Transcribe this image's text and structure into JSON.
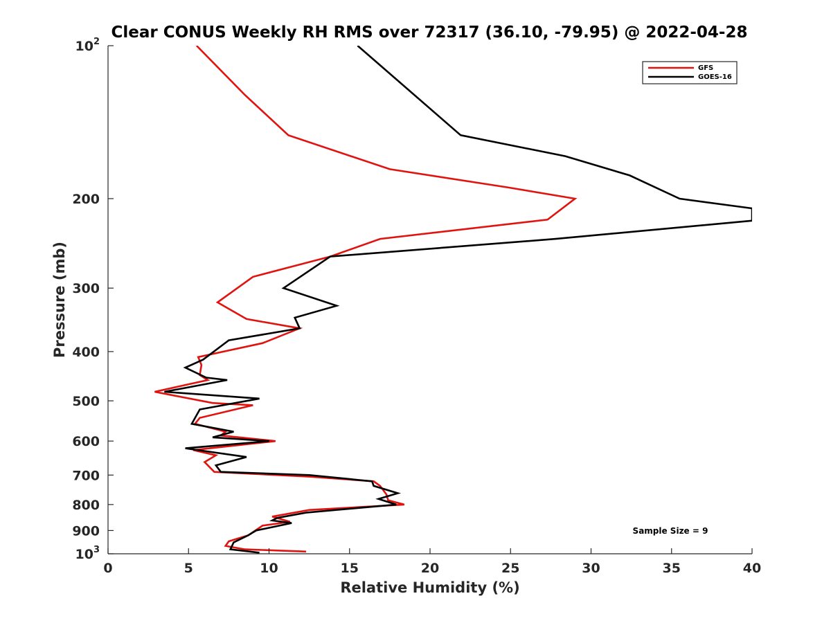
{
  "chart_data": {
    "type": "line",
    "title": "Clear CONUS Weekly RH RMS over 72317 (36.10, -79.95) @ 2022-04-28",
    "xlabel": "Relative Humidity (%)",
    "ylabel": "Pressure (mb)",
    "xlim": [
      0,
      40
    ],
    "ylim": [
      100,
      1000
    ],
    "y_scale": "log",
    "y_reversed": true,
    "x_ticks": [
      "0",
      "5",
      "10",
      "15",
      "20",
      "25",
      "30",
      "35",
      "40"
    ],
    "y_ticks": [
      {
        "value": 100,
        "base": "10",
        "exp": "2"
      },
      {
        "value": 200,
        "label": "200"
      },
      {
        "value": 300,
        "label": "300"
      },
      {
        "value": 400,
        "label": "400"
      },
      {
        "value": 500,
        "label": "500"
      },
      {
        "value": 600,
        "label": "600"
      },
      {
        "value": 700,
        "label": "700"
      },
      {
        "value": 800,
        "label": "800"
      },
      {
        "value": 900,
        "label": "900"
      },
      {
        "value": 1000,
        "base": "10",
        "exp": "3"
      }
    ],
    "legend_position": "top-right",
    "annotation": "Sample Size = 9",
    "series": [
      {
        "name": "GFS",
        "color": "#e0130f",
        "points": [
          [
            5.5,
            100
          ],
          [
            8.5,
            125
          ],
          [
            11.2,
            150
          ],
          [
            17.5,
            175
          ],
          [
            24.8,
            190
          ],
          [
            29.0,
            200
          ],
          [
            27.3,
            220
          ],
          [
            16.9,
            240
          ],
          [
            13.8,
            260
          ],
          [
            9.0,
            285
          ],
          [
            6.8,
            320
          ],
          [
            8.6,
            345
          ],
          [
            11.9,
            360
          ],
          [
            9.6,
            385
          ],
          [
            5.6,
            410
          ],
          [
            5.8,
            425
          ],
          [
            5.7,
            445
          ],
          [
            6.2,
            455
          ],
          [
            2.9,
            480
          ],
          [
            6.5,
            505
          ],
          [
            9.0,
            510
          ],
          [
            5.7,
            540
          ],
          [
            5.4,
            555
          ],
          [
            7.3,
            575
          ],
          [
            7.0,
            585
          ],
          [
            10.4,
            600
          ],
          [
            5.3,
            625
          ],
          [
            6.7,
            640
          ],
          [
            6.0,
            660
          ],
          [
            6.6,
            690
          ],
          [
            12.5,
            705
          ],
          [
            16.5,
            720
          ],
          [
            16.9,
            735
          ],
          [
            17.3,
            765
          ],
          [
            17.4,
            785
          ],
          [
            18.4,
            800
          ],
          [
            12.5,
            820
          ],
          [
            10.2,
            845
          ],
          [
            11.3,
            865
          ],
          [
            9.6,
            880
          ],
          [
            8.7,
            920
          ],
          [
            7.5,
            945
          ],
          [
            7.3,
            965
          ],
          [
            8.5,
            980
          ],
          [
            12.3,
            990
          ]
        ]
      },
      {
        "name": "GOES-16",
        "color": "#000000",
        "points": [
          [
            15.5,
            100
          ],
          [
            21.9,
            150
          ],
          [
            28.4,
            165
          ],
          [
            32.4,
            180
          ],
          [
            35.5,
            200
          ],
          [
            40.0,
            209
          ],
          [
            40.0,
            221
          ],
          [
            27.8,
            240
          ],
          [
            13.8,
            260
          ],
          [
            10.9,
            300
          ],
          [
            14.2,
            325
          ],
          [
            11.6,
            343
          ],
          [
            11.9,
            360
          ],
          [
            7.5,
            380
          ],
          [
            5.9,
            415
          ],
          [
            4.8,
            430
          ],
          [
            6.1,
            450
          ],
          [
            7.4,
            455
          ],
          [
            3.5,
            480
          ],
          [
            9.4,
            495
          ],
          [
            5.7,
            520
          ],
          [
            5.2,
            555
          ],
          [
            7.8,
            575
          ],
          [
            6.5,
            590
          ],
          [
            10.0,
            600
          ],
          [
            4.8,
            620
          ],
          [
            8.6,
            645
          ],
          [
            6.7,
            670
          ],
          [
            7.0,
            690
          ],
          [
            12.5,
            700
          ],
          [
            16.4,
            720
          ],
          [
            16.5,
            735
          ],
          [
            18.0,
            760
          ],
          [
            16.8,
            780
          ],
          [
            17.9,
            800
          ],
          [
            12.3,
            830
          ],
          [
            10.5,
            850
          ],
          [
            10.2,
            860
          ],
          [
            11.4,
            870
          ],
          [
            9.2,
            900
          ],
          [
            8.7,
            920
          ],
          [
            7.8,
            950
          ],
          [
            7.6,
            980
          ],
          [
            9.4,
            995
          ]
        ]
      }
    ]
  }
}
